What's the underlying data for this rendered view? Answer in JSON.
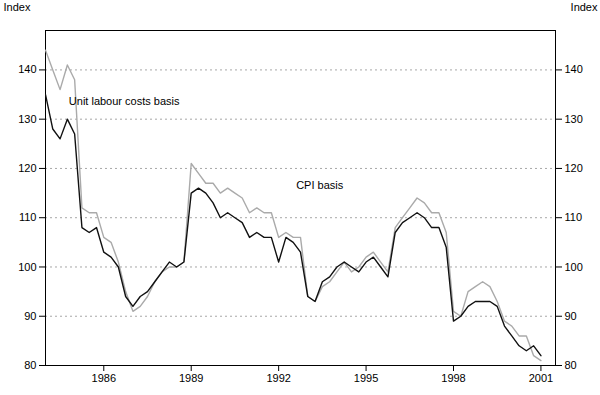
{
  "chart_data": {
    "type": "line",
    "x": [
      1984.0,
      1984.25,
      1984.5,
      1984.75,
      1985.0,
      1985.25,
      1985.5,
      1985.75,
      1986.0,
      1986.25,
      1986.5,
      1986.75,
      1987.0,
      1987.25,
      1987.5,
      1987.75,
      1988.0,
      1988.25,
      1988.5,
      1988.75,
      1989.0,
      1989.25,
      1989.5,
      1989.75,
      1990.0,
      1990.25,
      1990.5,
      1990.75,
      1991.0,
      1991.25,
      1991.5,
      1991.75,
      1992.0,
      1992.25,
      1992.5,
      1992.75,
      1993.0,
      1993.25,
      1993.5,
      1993.75,
      1994.0,
      1994.25,
      1994.5,
      1994.75,
      1995.0,
      1995.25,
      1995.5,
      1995.75,
      1996.0,
      1996.25,
      1996.5,
      1996.75,
      1997.0,
      1997.25,
      1997.5,
      1997.75,
      1998.0,
      1998.25,
      1998.5,
      1998.75,
      1999.0,
      1999.25,
      1999.5,
      1999.75,
      2000.0,
      2000.25,
      2000.5,
      2000.75,
      2001.0
    ],
    "series": [
      {
        "color": "#aaaaaa",
        "values": [
          144,
          140,
          136,
          141,
          138,
          112,
          111,
          111,
          106,
          105,
          101,
          95,
          91,
          92,
          94,
          97,
          99,
          100,
          100,
          101,
          121,
          119,
          117,
          117,
          115,
          116,
          115,
          114,
          111,
          112,
          111,
          111,
          106,
          107,
          106,
          106,
          94,
          93,
          96,
          97,
          99,
          101,
          99,
          100,
          102,
          103,
          101,
          99,
          108,
          110,
          112,
          114,
          113,
          111,
          111,
          107,
          91,
          90,
          95,
          96,
          97,
          96,
          93,
          89,
          88,
          86,
          86,
          82,
          81
        ]
      },
      {
        "color": "#111111",
        "values": [
          135,
          128,
          126,
          130,
          127,
          108,
          107,
          108,
          103,
          102,
          100,
          94,
          92,
          94,
          95,
          97,
          99,
          101,
          100,
          101,
          115,
          116,
          115,
          113,
          110,
          111,
          110,
          109,
          106,
          107,
          106,
          106,
          101,
          106,
          105,
          103,
          94,
          93,
          97,
          98,
          100,
          101,
          100,
          99,
          101,
          102,
          100,
          98,
          107,
          109,
          110,
          111,
          110,
          108,
          108,
          104,
          89,
          90,
          92,
          93,
          93,
          93,
          92,
          88,
          86,
          84,
          83,
          84,
          82
        ]
      }
    ],
    "annotations": [
      {
        "text": "Unit labour costs basis",
        "x": 1984.8,
        "y": 133.5
      },
      {
        "text": "CPI basis",
        "x": 1992.6,
        "y": 116.5
      }
    ],
    "ylabel": "Index",
    "y2label": "Index",
    "xlim": [
      1984.0,
      2001.5
    ],
    "xticks": [
      1986,
      1989,
      1992,
      1995,
      1998,
      2001
    ],
    "ylim": [
      80,
      148
    ],
    "yticks": [
      80,
      90,
      100,
      110,
      120,
      130,
      140
    ],
    "y2lim": [
      80,
      148
    ],
    "y2ticks": [
      80,
      90,
      100,
      110,
      120,
      130,
      140
    ],
    "grid": true
  }
}
